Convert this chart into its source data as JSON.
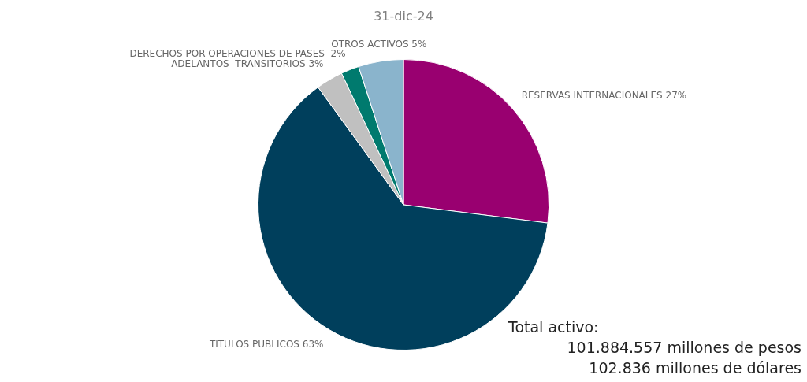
{
  "chart_data": {
    "type": "pie",
    "title": "31-dic-24",
    "categories": [
      "RESERVAS INTERNACIONALES",
      "TITULOS PUBLICOS",
      "ADELANTOS  TRANSITORIOS",
      "DERECHOS POR OPERACIONES DE PASES ",
      "OTROS ACTIVOS"
    ],
    "values": [
      27,
      63,
      3,
      2,
      5
    ],
    "colors": [
      "#990070",
      "#003f5c",
      "#c0c0c0",
      "#007a6e",
      "#8ab4cc"
    ],
    "value_labels": [
      "27%",
      "63%",
      "3%",
      "2%",
      "5%"
    ],
    "annotations": [
      "Total activo:",
      "101.884.557 millones de pesos",
      "102.836 millones de dólares"
    ]
  }
}
